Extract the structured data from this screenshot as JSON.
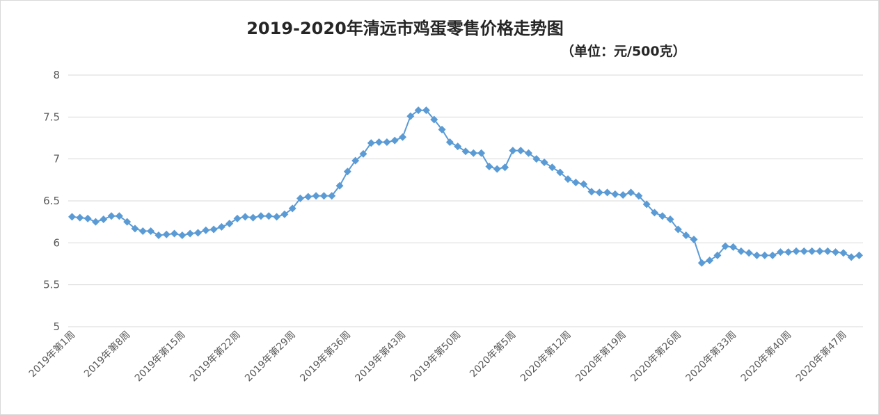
{
  "chart_data": {
    "type": "line",
    "title": "2019-2020年清远市鸡蛋零售价格走势图",
    "subtitle": "（单位：元/500克）",
    "ylim": [
      5,
      8
    ],
    "yticks": [
      "5",
      "5.5",
      "6",
      "6.5",
      "7",
      "7.5",
      "8"
    ],
    "grid": true,
    "line_color": "#5b9bd5",
    "marker": "diamond",
    "x_tick_labels": [
      {
        "index": 0,
        "label": "2019年第1周"
      },
      {
        "index": 7,
        "label": "2019年第8周"
      },
      {
        "index": 14,
        "label": "2019年第15周"
      },
      {
        "index": 21,
        "label": "2019年第22周"
      },
      {
        "index": 28,
        "label": "2019年第29周"
      },
      {
        "index": 35,
        "label": "2019年第36周"
      },
      {
        "index": 42,
        "label": "2019年第43周"
      },
      {
        "index": 49,
        "label": "2019年第50周"
      },
      {
        "index": 56,
        "label": "2020年第5周"
      },
      {
        "index": 63,
        "label": "2020年第12周"
      },
      {
        "index": 70,
        "label": "2020年第19周"
      },
      {
        "index": 77,
        "label": "2020年第26周"
      },
      {
        "index": 84,
        "label": "2020年第33周"
      },
      {
        "index": 91,
        "label": "2020年第40周"
      },
      {
        "index": 98,
        "label": "2020年第47周"
      }
    ],
    "values": [
      6.31,
      6.3,
      6.29,
      6.25,
      6.28,
      6.32,
      6.32,
      6.25,
      6.17,
      6.14,
      6.14,
      6.09,
      6.1,
      6.11,
      6.09,
      6.11,
      6.12,
      6.15,
      6.16,
      6.19,
      6.23,
      6.29,
      6.31,
      6.3,
      6.32,
      6.32,
      6.31,
      6.34,
      6.41,
      6.53,
      6.55,
      6.56,
      6.56,
      6.56,
      6.68,
      6.85,
      6.98,
      7.06,
      7.19,
      7.2,
      7.2,
      7.22,
      7.26,
      7.51,
      7.58,
      7.58,
      7.47,
      7.35,
      7.2,
      7.15,
      7.09,
      7.07,
      7.07,
      6.91,
      6.88,
      6.9,
      7.1,
      7.1,
      7.07,
      7.0,
      6.96,
      6.9,
      6.84,
      6.76,
      6.72,
      6.7,
      6.61,
      6.6,
      6.6,
      6.58,
      6.57,
      6.6,
      6.56,
      6.46,
      6.36,
      6.32,
      6.28,
      6.16,
      6.09,
      6.04,
      5.76,
      5.79,
      5.85,
      5.96,
      5.95,
      5.9,
      5.88,
      5.85,
      5.85,
      5.85,
      5.89,
      5.89,
      5.9,
      5.9,
      5.9,
      5.9,
      5.9,
      5.89,
      5.88,
      5.83,
      5.85
    ]
  }
}
